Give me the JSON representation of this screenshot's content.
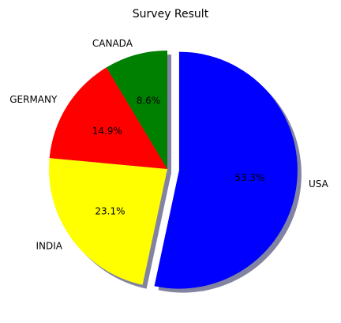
{
  "chart_data": {
    "type": "pie",
    "title": "Survey Result",
    "categories": [
      "USA",
      "INDIA",
      "GERMANY",
      "CANADA"
    ],
    "values": [
      53.3,
      23.1,
      14.9,
      8.6
    ],
    "value_labels": [
      "53.3%",
      "23.1%",
      "14.9%",
      "8.6%"
    ],
    "colors": [
      "#0000ff",
      "#ffff00",
      "#ff0000",
      "#008000"
    ],
    "start_angle_deg": 90,
    "direction": "clockwise",
    "explode": [
      0.1,
      0,
      0,
      0
    ],
    "shadow": true,
    "shadow_color": "#2e2e66"
  }
}
